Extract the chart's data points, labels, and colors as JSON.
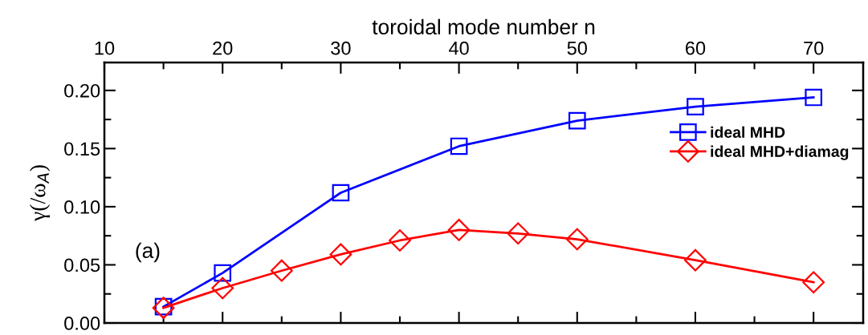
{
  "chart_data": {
    "type": "line",
    "xlabel": "toroidal mode number n",
    "ylabel": "γ(/ω$_{A}$)",
    "annotations": [
      "(a)"
    ],
    "xlim": [
      10,
      74.2
    ],
    "ylim": [
      0,
      0.224
    ],
    "xticks": [
      10,
      20,
      30,
      40,
      50,
      60,
      70
    ],
    "yticks": [
      {
        "value": 0,
        "label": "0.00"
      },
      {
        "value": 0.05,
        "label": "0.05"
      },
      {
        "value": 0.1,
        "label": "0.10"
      },
      {
        "value": 0.15,
        "label": "0.15"
      },
      {
        "value": 0.2,
        "label": "0.20"
      }
    ],
    "grid": false,
    "legend": "right",
    "line_style": "solid",
    "series": [
      {
        "name": "ideal MHD",
        "color": "#0000ff",
        "marker": "square",
        "x": [
          15,
          20,
          30,
          40,
          50,
          60,
          70
        ],
        "values": [
          0.014,
          0.043,
          0.112,
          0.152,
          0.174,
          0.186,
          0.194
        ]
      },
      {
        "name": "ideal MHD+diamag",
        "color": "#ff0000",
        "marker": "diamond",
        "x": [
          15,
          20,
          25,
          30,
          35,
          40,
          45,
          50,
          60,
          70
        ],
        "values": [
          0.013,
          0.03,
          0.045,
          0.059,
          0.071,
          0.08,
          0.077,
          0.072,
          0.054,
          0.035
        ]
      }
    ]
  }
}
